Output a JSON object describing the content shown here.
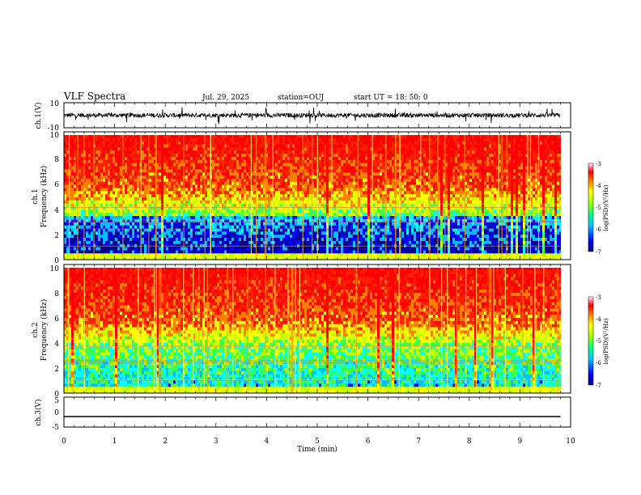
{
  "header": {
    "title": "VLF Spectra",
    "date": "Jul. 29, 2025",
    "station": "station=OUJ",
    "start": "start UT =  18: 50: 0"
  },
  "colors": {
    "spectrum": [
      "#00008b",
      "#0000ff",
      "#00bfff",
      "#00ffff",
      "#40ff40",
      "#c8ff00",
      "#ffff00",
      "#ff8000",
      "#ff2000",
      "#ff0000"
    ],
    "trace": "#000000"
  },
  "chart_data": [
    {
      "type": "line",
      "title": "ch.1 waveform",
      "ylabel": "ch.1(V)",
      "ylim": [
        -10,
        10
      ],
      "yticks": [
        "10",
        "-10"
      ],
      "xlim": [
        0,
        10
      ],
      "description_series": "noisy waveform fluctuating roughly between -3 and 3 V with spikes"
    },
    {
      "type": "heatmap",
      "title": "ch.1 spectrogram",
      "ylabel": "Frequency (kHz)",
      "sublabel": "ch.1",
      "ylim": [
        0,
        10
      ],
      "yticks": [
        "0",
        "2",
        "4",
        "6",
        "8",
        "10"
      ],
      "xlim": [
        0,
        10
      ],
      "colorbar": {
        "label": "log(PSD)(V²/Hz)",
        "ticks": [
          "-3",
          "-4",
          "-5",
          "-6",
          "-7"
        ],
        "range": [
          -7,
          -3
        ]
      }
    },
    {
      "type": "heatmap",
      "title": "ch.2 spectrogram",
      "ylabel": "Frequency (kHz)",
      "sublabel": "ch.2",
      "ylim": [
        0,
        10
      ],
      "yticks": [
        "0",
        "2",
        "4",
        "6",
        "8",
        "10"
      ],
      "xlim": [
        0,
        10
      ],
      "colorbar": {
        "label": "log(PSD)(V²/Hz)",
        "ticks": [
          "-3",
          "-4",
          "-5",
          "-6",
          "-7"
        ],
        "range": [
          -7,
          -3
        ]
      }
    },
    {
      "type": "line",
      "title": "ch.3 waveform",
      "ylabel": "ch.3(V)",
      "ylim": [
        -5,
        5
      ],
      "yticks": [
        "5",
        "0",
        "-5"
      ],
      "level": -1.5,
      "xlim": [
        0,
        10
      ]
    }
  ],
  "xaxis": {
    "label": "Time (min)",
    "ticks": [
      "0",
      "1",
      "2",
      "3",
      "4",
      "5",
      "6",
      "7",
      "8",
      "9",
      "10"
    ],
    "range": [
      0,
      10
    ],
    "data_end": 9.8
  }
}
